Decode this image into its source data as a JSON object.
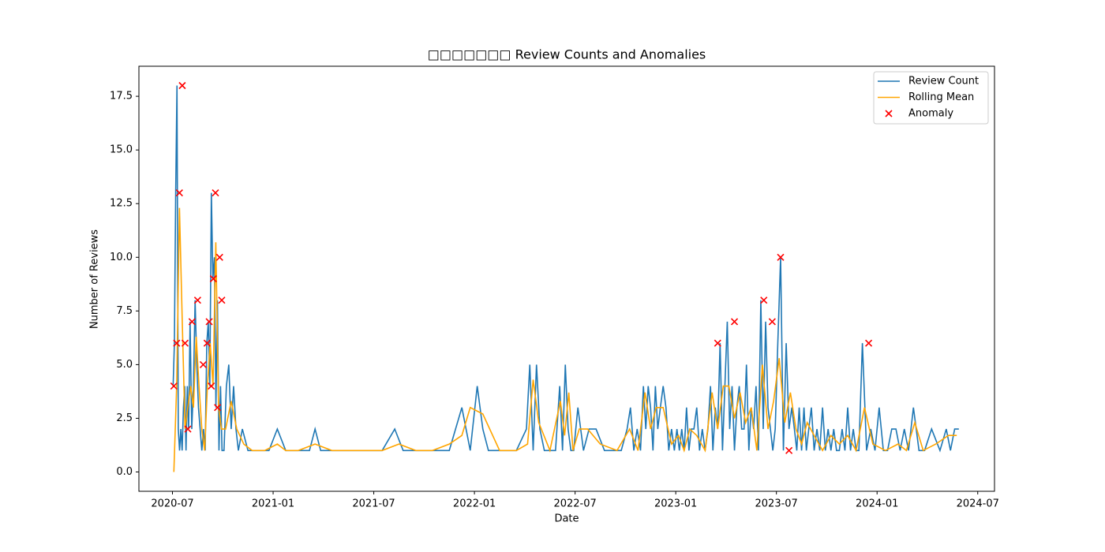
{
  "chart_data": {
    "type": "line",
    "title": "□□□□□□□ Review Counts and Anomalies",
    "x_label": "Date",
    "y_label": "Number of Reviews",
    "xlim": [
      "2020-05",
      "2024-08"
    ],
    "xticks": [
      "2020-07",
      "2021-01",
      "2021-07",
      "2022-01",
      "2022-07",
      "2023-01",
      "2023-07",
      "2024-01",
      "2024-07"
    ],
    "ylim": [
      -0.9,
      18.9
    ],
    "yticks": [
      {
        "value": 0,
        "label": "0.0"
      },
      2.5,
      {
        "value": 5,
        "label": "5.0"
      },
      7.5,
      {
        "value": 10,
        "label": "10.0"
      },
      12.5,
      {
        "value": 15,
        "label": "15.0"
      },
      17.5
    ],
    "legend": "upper right",
    "series": [
      {
        "name": "Review Count",
        "type": "line",
        "color": "#1f77b4",
        "x": [
          "2020-07",
          "2020-07",
          "2020-07",
          "2020-07",
          "2020-07",
          "2020-07",
          "2020-07",
          "2020-07",
          "2020-07",
          "2020-07",
          "2020-07",
          "2020-07",
          "2020-07",
          "2020-08",
          "2020-08",
          "2020-08",
          "2020-08",
          "2020-08",
          "2020-08",
          "2020-08",
          "2020-08",
          "2020-08",
          "2020-08",
          "2020-09",
          "2020-09",
          "2020-09",
          "2020-09",
          "2020-09",
          "2020-09",
          "2020-09",
          "2020-09",
          "2020-09",
          "2020-09",
          "2020-09",
          "2020-10",
          "2020-10",
          "2020-10",
          "2020-10",
          "2020-10",
          "2020-10",
          "2020-10",
          "2020-11",
          "2020-11",
          "2020-11",
          "2020-12",
          "2020-12",
          "2021-01",
          "2021-01",
          "2021-02",
          "2021-03",
          "2021-03",
          "2021-03",
          "2021-04",
          "2021-05",
          "2021-06",
          "2021-07",
          "2021-08",
          "2021-08",
          "2021-09",
          "2021-10",
          "2021-11",
          "2021-12",
          "2021-12",
          "2022-01",
          "2022-01",
          "2022-01",
          "2022-02",
          "2022-03",
          "2022-04",
          "2022-04",
          "2022-04",
          "2022-04",
          "2022-04",
          "2022-05",
          "2022-05",
          "2022-05",
          "2022-06",
          "2022-06",
          "2022-06",
          "2022-06",
          "2022-06",
          "2022-06",
          "2022-07",
          "2022-07",
          "2022-07",
          "2022-08",
          "2022-08",
          "2022-09",
          "2022-09",
          "2022-10",
          "2022-10",
          "2022-10",
          "2022-10",
          "2022-10",
          "2022-11",
          "2022-11",
          "2022-11",
          "2022-11",
          "2022-11",
          "2022-11",
          "2022-11",
          "2022-12",
          "2022-12",
          "2022-12",
          "2022-12",
          "2022-12",
          "2022-12",
          "2023-01",
          "2023-01",
          "2023-01",
          "2023-01",
          "2023-01",
          "2023-01",
          "2023-01",
          "2023-02",
          "2023-02",
          "2023-02",
          "2023-02",
          "2023-02",
          "2023-02",
          "2023-03",
          "2023-03",
          "2023-03",
          "2023-03",
          "2023-03",
          "2023-03",
          "2023-03",
          "2023-04",
          "2023-04",
          "2023-04",
          "2023-04",
          "2023-04",
          "2023-04",
          "2023-04",
          "2023-05",
          "2023-05",
          "2023-05",
          "2023-05",
          "2023-05",
          "2023-05",
          "2023-05",
          "2023-06",
          "2023-06",
          "2023-06",
          "2023-06",
          "2023-06",
          "2023-06",
          "2023-06",
          "2023-07",
          "2023-07",
          "2023-07",
          "2023-07",
          "2023-07",
          "2023-07",
          "2023-08",
          "2023-08",
          "2023-08",
          "2023-08",
          "2023-08",
          "2023-08",
          "2023-08",
          "2023-09",
          "2023-09",
          "2023-09",
          "2023-09",
          "2023-09",
          "2023-09",
          "2023-10",
          "2023-10",
          "2023-10",
          "2023-10",
          "2023-10",
          "2023-10",
          "2023-11",
          "2023-11",
          "2023-11",
          "2023-11",
          "2023-11",
          "2023-11",
          "2023-12",
          "2023-12",
          "2023-12",
          "2023-12",
          "2024-01",
          "2024-01",
          "2024-01",
          "2024-01",
          "2024-02",
          "2024-02",
          "2024-02",
          "2024-02",
          "2024-03",
          "2024-03",
          "2024-03",
          "2024-04",
          "2024-04",
          "2024-05",
          "2024-05",
          "2024-05",
          "2024-05"
        ],
        "values": [
          4,
          6,
          13,
          18,
          2,
          1,
          2,
          1,
          3,
          4,
          1,
          4,
          2,
          7,
          2,
          4,
          8,
          5,
          3,
          2,
          1,
          2,
          1,
          6,
          7,
          4,
          13,
          9,
          10,
          3,
          8,
          1,
          4,
          1,
          1,
          4,
          5,
          2,
          4,
          2,
          1,
          2,
          1,
          1,
          1,
          1,
          2,
          1,
          1,
          1,
          2,
          1,
          1,
          1,
          1,
          1,
          2,
          1,
          1,
          1,
          1,
          3,
          1,
          4,
          2,
          1,
          1,
          1,
          2,
          5,
          1,
          5,
          2,
          1,
          1,
          1,
          4,
          1,
          5,
          2,
          1,
          1,
          3,
          1,
          2,
          2,
          1,
          1,
          1,
          2,
          3,
          1,
          2,
          1,
          4,
          2,
          4,
          3,
          1,
          4,
          2,
          3,
          4,
          3,
          1,
          2,
          1,
          2,
          1,
          2,
          1,
          3,
          1,
          2,
          2,
          3,
          1,
          2,
          1,
          2,
          4,
          1,
          3,
          2,
          6,
          1,
          4,
          7,
          2,
          4,
          1,
          3,
          4,
          2,
          2,
          5,
          1,
          3,
          2,
          4,
          1,
          8,
          2,
          7,
          3,
          2,
          1,
          2,
          6,
          10,
          1,
          6,
          2,
          3,
          2,
          1,
          3,
          1,
          3,
          1,
          2,
          3,
          1,
          2,
          1,
          3,
          1,
          2,
          1,
          2,
          1,
          1,
          2,
          1,
          3,
          1,
          2,
          1,
          1,
          6,
          1,
          2,
          1,
          3,
          1,
          1,
          2,
          2,
          1,
          2,
          1,
          3,
          1,
          1,
          2,
          1,
          2,
          1,
          2,
          2
        ]
      },
      {
        "name": "Rolling Mean",
        "type": "line",
        "color": "#ffa500",
        "x": [
          "2020-07",
          "2020-07",
          "2020-07",
          "2020-07",
          "2020-07",
          "2020-07",
          "2020-08",
          "2020-08",
          "2020-08",
          "2020-08",
          "2020-08",
          "2020-08",
          "2020-09",
          "2020-09",
          "2020-09",
          "2020-09",
          "2020-09",
          "2020-09",
          "2020-10",
          "2020-10",
          "2020-10",
          "2020-11",
          "2020-11",
          "2020-12",
          "2021-01",
          "2021-01",
          "2021-02",
          "2021-03",
          "2021-04",
          "2021-05",
          "2021-06",
          "2021-07",
          "2021-08",
          "2021-09",
          "2021-10",
          "2021-11",
          "2021-12",
          "2021-12",
          "2022-01",
          "2022-02",
          "2022-03",
          "2022-04",
          "2022-04",
          "2022-04",
          "2022-05",
          "2022-06",
          "2022-06",
          "2022-06",
          "2022-06",
          "2022-07",
          "2022-07",
          "2022-08",
          "2022-09",
          "2022-10",
          "2022-10",
          "2022-11",
          "2022-11",
          "2022-11",
          "2022-12",
          "2022-12",
          "2023-01",
          "2023-01",
          "2023-01",
          "2023-02",
          "2023-02",
          "2023-03",
          "2023-03",
          "2023-03",
          "2023-04",
          "2023-04",
          "2023-04",
          "2023-05",
          "2023-05",
          "2023-05",
          "2023-06",
          "2023-06",
          "2023-06",
          "2023-07",
          "2023-07",
          "2023-07",
          "2023-08",
          "2023-08",
          "2023-08",
          "2023-09",
          "2023-09",
          "2023-10",
          "2023-10",
          "2023-11",
          "2023-11",
          "2023-12",
          "2023-12",
          "2024-01",
          "2024-02",
          "2024-02",
          "2024-03",
          "2024-03",
          "2024-04",
          "2024-05",
          "2024-05"
        ],
        "values": [
          0,
          4,
          12.3,
          7,
          2,
          3,
          4,
          3,
          6.3,
          4,
          2,
          1,
          4,
          6,
          4,
          10.7,
          3,
          2,
          2,
          3.3,
          2,
          1.3,
          1,
          1,
          1.3,
          1,
          1,
          1.3,
          1,
          1,
          1,
          1,
          1.3,
          1,
          1,
          1.3,
          1.7,
          3,
          2.7,
          1,
          1,
          1.3,
          4.3,
          2.3,
          1,
          3.3,
          1.7,
          3.7,
          1,
          2,
          2,
          1.3,
          1,
          2,
          1,
          3.7,
          2,
          3,
          3,
          1.3,
          1.7,
          1,
          2,
          1.7,
          1,
          3.7,
          2,
          4,
          4,
          2.5,
          3.7,
          2.3,
          3,
          1,
          5,
          2,
          3.3,
          5.3,
          2.3,
          3.7,
          2,
          1.3,
          2.3,
          1.7,
          1,
          1.7,
          1.3,
          1.7,
          1,
          3,
          1.3,
          1,
          1.3,
          1,
          2.3,
          1,
          1.3,
          1.7,
          1.7
        ]
      },
      {
        "name": "Anomaly",
        "type": "scatter",
        "color": "#ff0000",
        "x": [
          "2020-07",
          "2020-07",
          "2020-07",
          "2020-07",
          "2020-07",
          "2020-07",
          "2020-08",
          "2020-08",
          "2020-08",
          "2020-09",
          "2020-09",
          "2020-09",
          "2020-09",
          "2020-09",
          "2020-09",
          "2020-09",
          "2020-09",
          "2023-03",
          "2023-04",
          "2023-06",
          "2023-06",
          "2023-07",
          "2023-07",
          "2023-12"
        ],
        "values": [
          4,
          6,
          13,
          18,
          6,
          2,
          7,
          8,
          5,
          6,
          7,
          4,
          9,
          13,
          3,
          10,
          8,
          6,
          7,
          8,
          7,
          10,
          1,
          6
        ]
      }
    ]
  }
}
